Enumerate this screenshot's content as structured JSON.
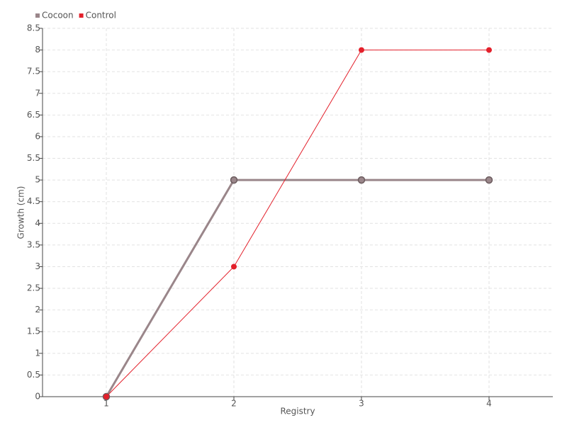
{
  "chart_data": {
    "type": "line",
    "x_label": "Registry",
    "y_label": "Growth (cm)",
    "x": [
      1,
      2,
      3,
      4
    ],
    "xlim": [
      0.5,
      4.5
    ],
    "xticks": [
      1,
      2,
      3,
      4
    ],
    "ylim": [
      0,
      8.5
    ],
    "yticks": [
      0,
      0.5,
      1,
      1.5,
      2,
      2.5,
      3,
      3.5,
      4,
      4.5,
      5,
      5.5,
      6,
      6.5,
      7,
      7.5,
      8,
      8.5
    ],
    "grid": true,
    "legend": "top-left",
    "series": [
      {
        "name": "Cocoon",
        "color": "#9a868a",
        "values": [
          0,
          5,
          5,
          5
        ]
      },
      {
        "name": "Control",
        "color": "#e3202b",
        "values": [
          0,
          3,
          8,
          8
        ]
      }
    ]
  }
}
